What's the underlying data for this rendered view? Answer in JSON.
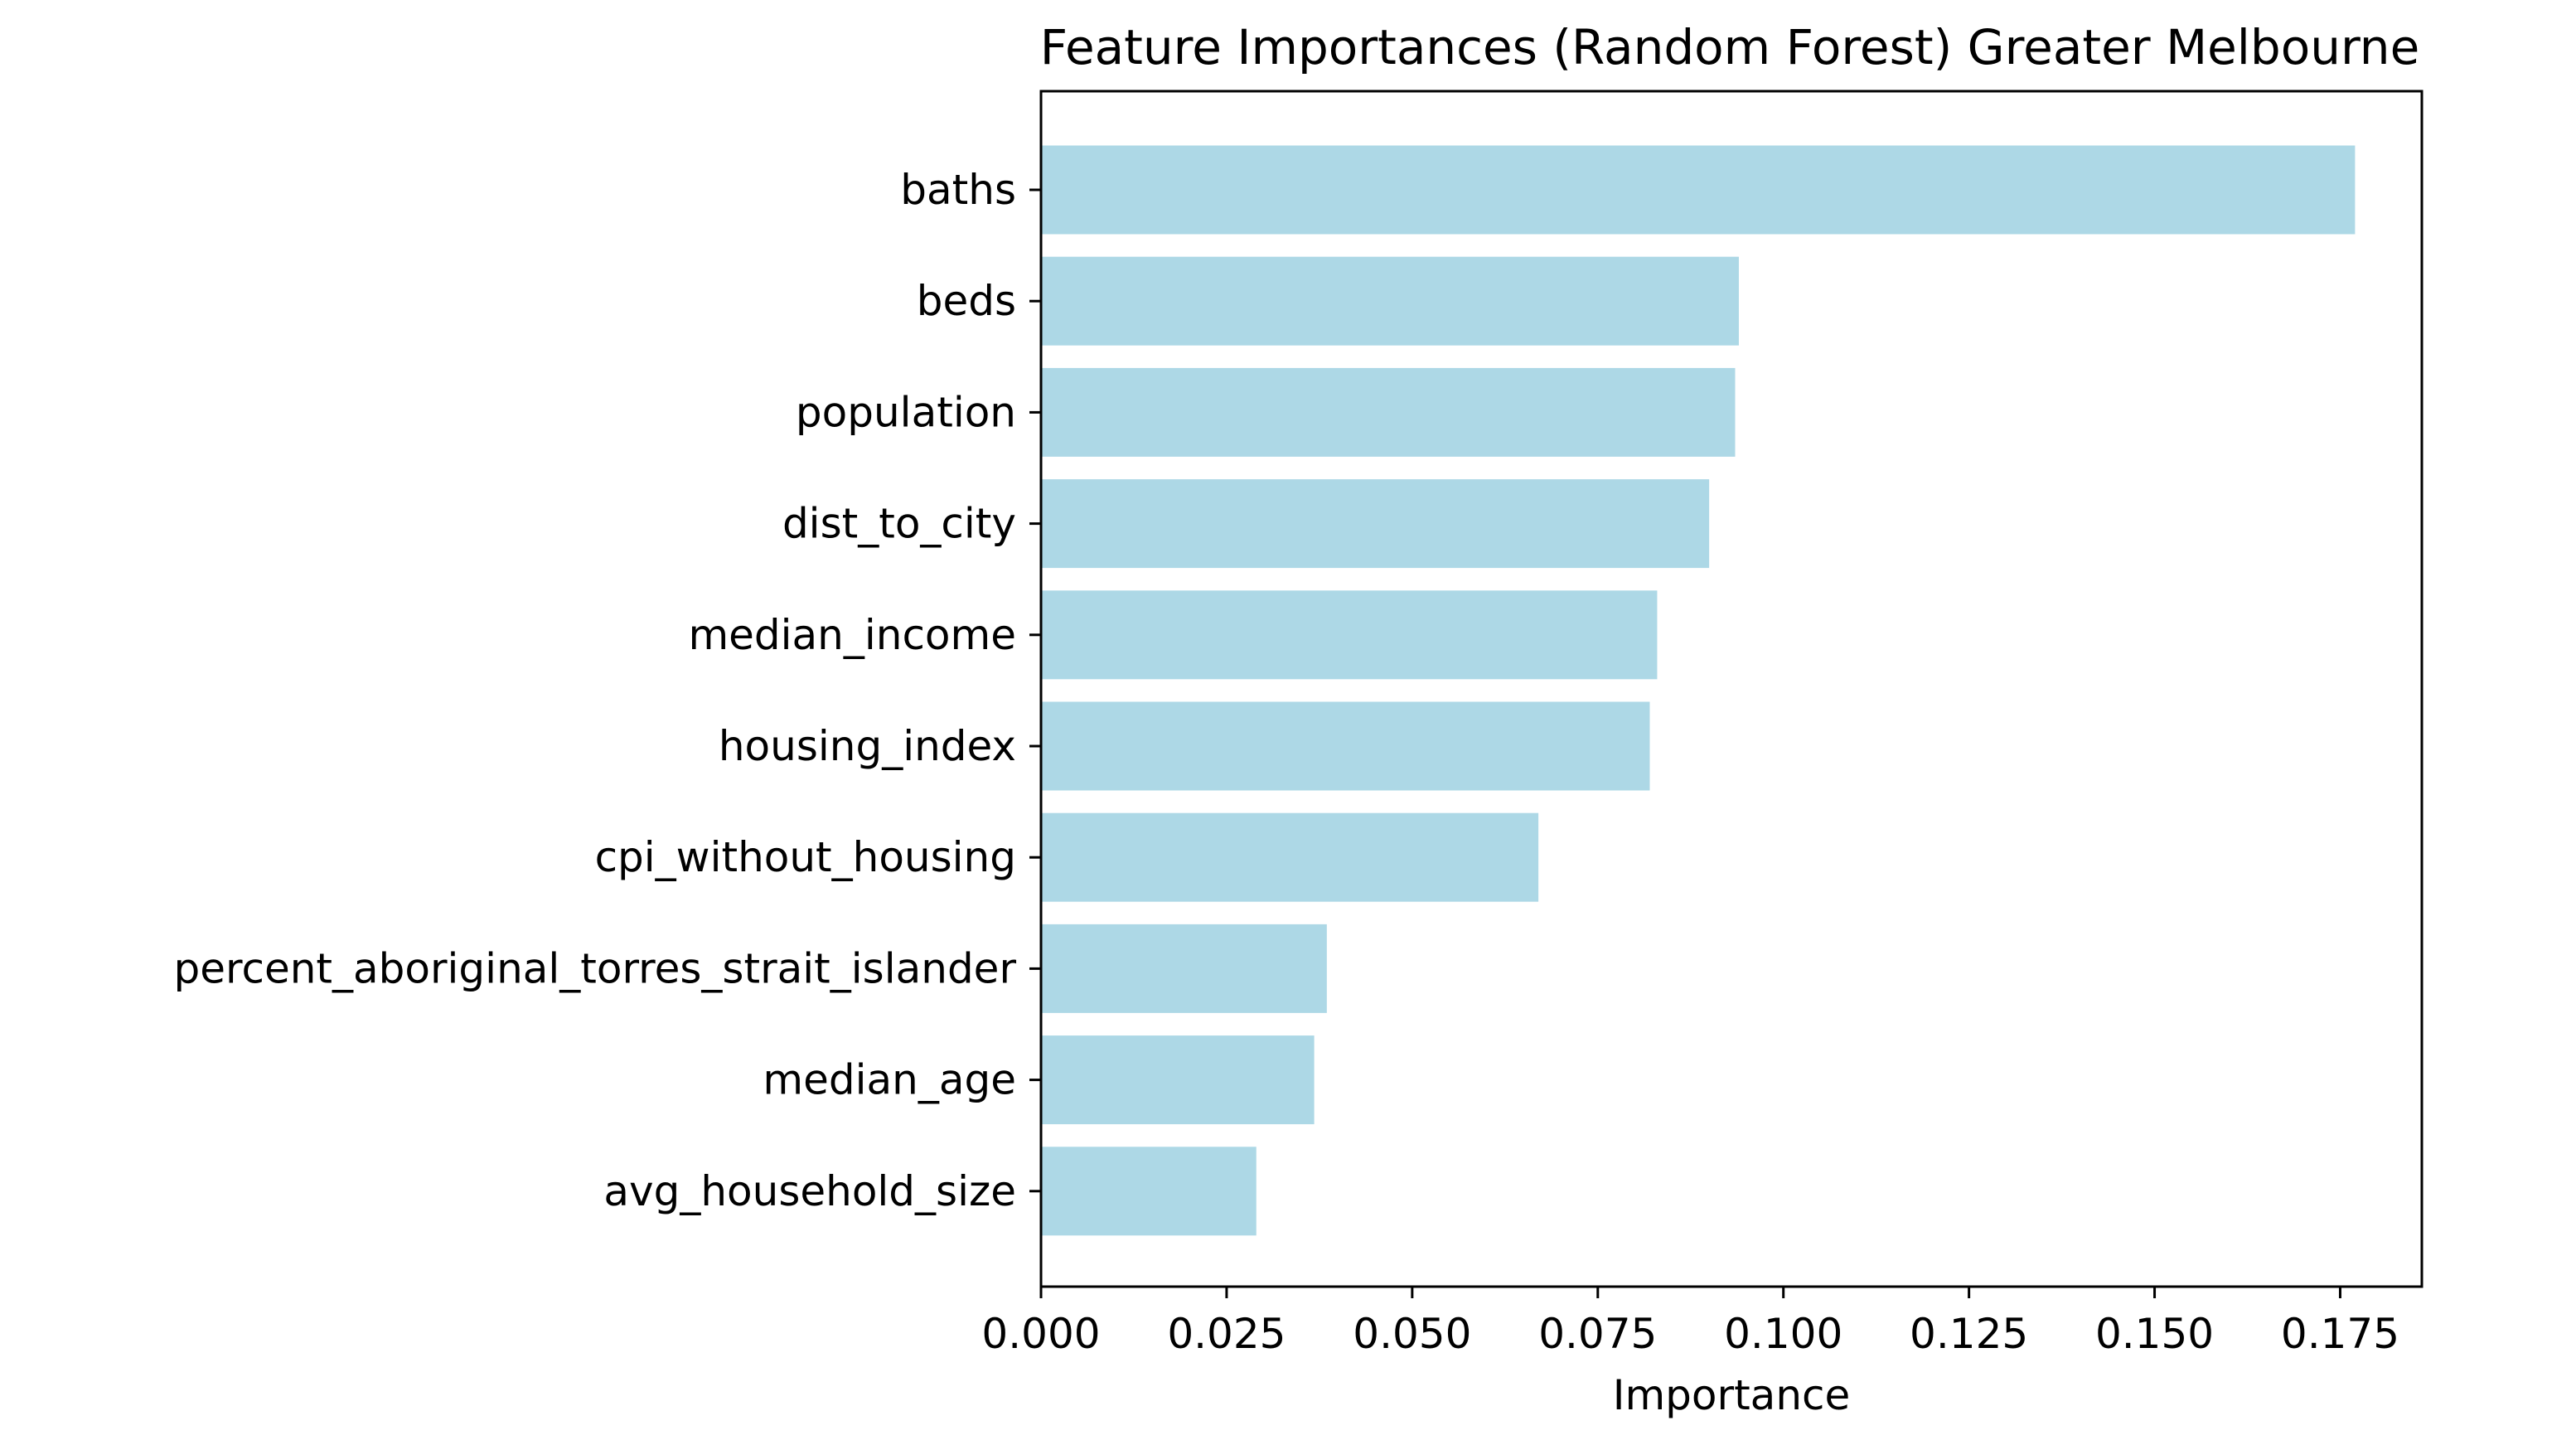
{
  "chart_data": {
    "type": "bar",
    "orientation": "horizontal",
    "title": "Feature Importances (Random Forest) Greater Melbourne",
    "xlabel": "Importance",
    "ylabel": "",
    "categories": [
      "baths",
      "beds",
      "population",
      "dist_to_city",
      "median_income",
      "housing_index",
      "cpi_without_housing",
      "percent_aboriginal_torres_strait_islander",
      "median_age",
      "avg_household_size"
    ],
    "values": [
      0.177,
      0.094,
      0.0935,
      0.09,
      0.083,
      0.082,
      0.067,
      0.0385,
      0.0368,
      0.029
    ],
    "xlim": [
      0,
      0.186
    ],
    "xticks": [
      0.0,
      0.025,
      0.05,
      0.075,
      0.1,
      0.125,
      0.15,
      0.175
    ],
    "xtick_labels": [
      "0.000",
      "0.025",
      "0.050",
      "0.075",
      "0.100",
      "0.125",
      "0.150",
      "0.175"
    ],
    "bar_color": "#add8e6",
    "grid": false,
    "legend": "none"
  }
}
